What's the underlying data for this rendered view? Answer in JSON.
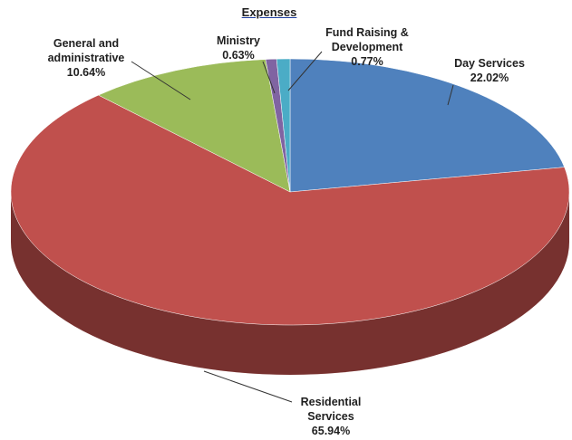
{
  "chart_data": {
    "type": "pie",
    "title": "Expenses",
    "categories": [
      "Day Services",
      "Residential Services",
      "General and administrative",
      "Ministry",
      "Fund Raising & Development"
    ],
    "values": [
      22.02,
      65.94,
      10.64,
      0.63,
      0.77
    ],
    "value_labels": [
      "22.02%",
      "65.94%",
      "10.64%",
      "0.63%",
      "0.77%"
    ],
    "colors": [
      "#4f81bd",
      "#c0504d",
      "#9bbb59",
      "#8064a2",
      "#4bacc6"
    ]
  }
}
